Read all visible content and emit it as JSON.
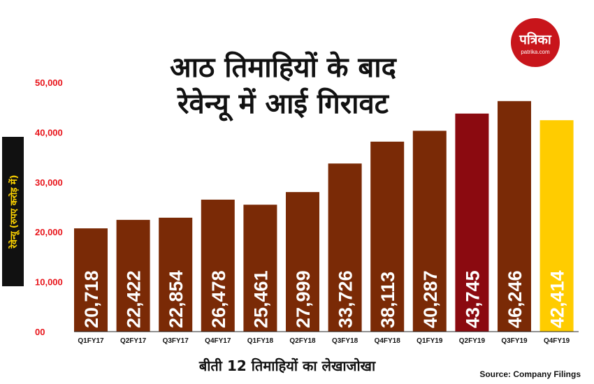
{
  "logo": {
    "name": "पत्रिका",
    "site": "patrika.com",
    "color": "#c8151b"
  },
  "source": "Source: Company Filings",
  "chart_data": {
    "type": "bar",
    "title": [
      "आठ तिमाहियों के बाद",
      "रेवेन्यू में आई गिरावट"
    ],
    "ylabel": "रेवेन्यू (रुपए करोड़ में)",
    "xlabel": "बीती 12 तिमाहियों का लेखाजोखा",
    "categories": [
      "Q1FY17",
      "Q2FY17",
      "Q3FY17",
      "Q4FY17",
      "Q1FY18",
      "Q2FY18",
      "Q3FY18",
      "Q4FY18",
      "Q1FY19",
      "Q2FY19",
      "Q3FY19",
      "Q4FY19"
    ],
    "values": [
      20718,
      22422,
      22854,
      26478,
      25461,
      27999,
      33726,
      38113,
      40287,
      43745,
      46246,
      42414
    ],
    "data_labels": [
      "20,718",
      "22,422",
      "22,854",
      "26,478",
      "25,461",
      "27,999",
      "33,726",
      "38,113",
      "40,287",
      "43,745",
      "46,246",
      "42,414"
    ],
    "bar_colors": [
      "#7a2a06",
      "#7a2a06",
      "#7a2a06",
      "#7a2a06",
      "#7a2a06",
      "#7a2a06",
      "#7a2a06",
      "#7a2a06",
      "#7a2a06",
      "#8b0a10",
      "#7a2a06",
      "#ffcc00"
    ],
    "yticks": [
      0,
      10000,
      20000,
      30000,
      40000,
      50000
    ],
    "ytick_labels": [
      "00",
      "10,000",
      "20,000",
      "30,000",
      "40,000",
      "50,000"
    ],
    "ylim": [
      0,
      50000
    ],
    "grid": false,
    "legend": "none"
  }
}
